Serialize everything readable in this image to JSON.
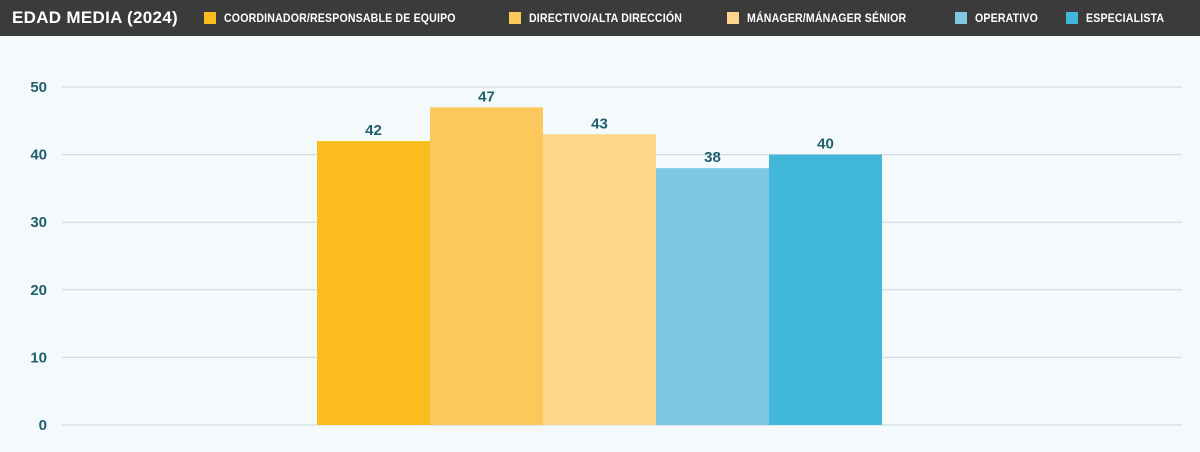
{
  "chart_data": {
    "type": "bar",
    "title": "EDAD MEDIA (2024)",
    "series": [
      {
        "name": "COORDINADOR/RESPONSABLE DE EQUIPO",
        "value": 42,
        "color": "#fbbc1e"
      },
      {
        "name": "DIRECTIVO/ALTA DIRECCIÓN",
        "value": 47,
        "color": "#fdc85b"
      },
      {
        "name": "MÁNAGER/MÁNAGER SÉNIOR",
        "value": 43,
        "color": "#fed58b"
      },
      {
        "name": "OPERATIVO",
        "value": 38,
        "color": "#7ec8e3"
      },
      {
        "name": "ESPECIALISTA",
        "value": 40,
        "color": "#41b7d9"
      }
    ],
    "y_ticks": [
      "0",
      "10",
      "20",
      "30",
      "40",
      "50"
    ],
    "ylim": [
      0,
      50
    ],
    "grid": true,
    "legend_placement": "top"
  }
}
